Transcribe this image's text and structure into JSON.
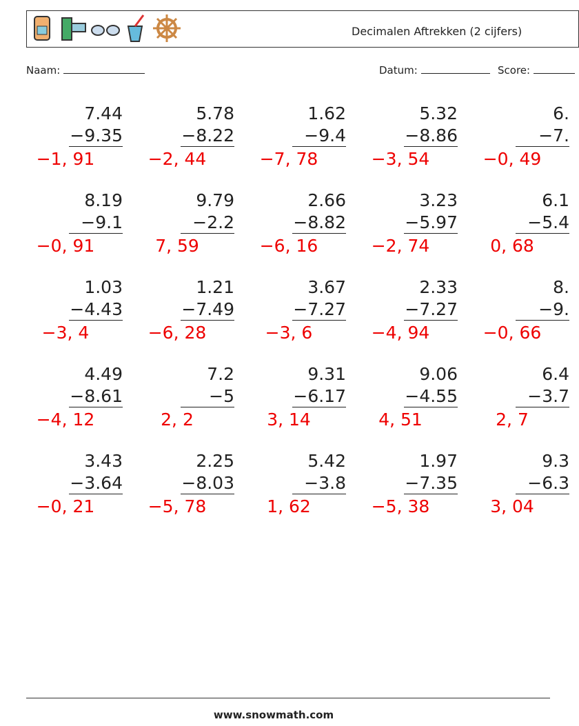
{
  "header": {
    "title": "Decimalen Aftrekken (2 cijfers)",
    "name_label": "Naam:",
    "date_label": "Datum:",
    "score_label": "Score:"
  },
  "problems": [
    [
      {
        "top": "7.44",
        "bottom": "−9.35",
        "answer": "−1, 91"
      },
      {
        "top": "5.78",
        "bottom": "−8.22",
        "answer": "−2, 44"
      },
      {
        "top": "1.62",
        "bottom": "−9.4",
        "answer": "−7, 78"
      },
      {
        "top": "5.32",
        "bottom": "−8.86",
        "answer": "−3, 54"
      },
      {
        "top": "6.",
        "bottom": "−7.",
        "answer": "−0, 49"
      }
    ],
    [
      {
        "top": "8.19",
        "bottom": "−9.1",
        "answer": "−0, 91"
      },
      {
        "top": "9.79",
        "bottom": "−2.2",
        "answer": "7, 59"
      },
      {
        "top": "2.66",
        "bottom": "−8.82",
        "answer": "−6, 16"
      },
      {
        "top": "3.23",
        "bottom": "−5.97",
        "answer": "−2, 74"
      },
      {
        "top": "6.1",
        "bottom": "−5.4",
        "answer": "0, 68"
      }
    ],
    [
      {
        "top": "1.03",
        "bottom": "−4.43",
        "answer": "−3, 4"
      },
      {
        "top": "1.21",
        "bottom": "−7.49",
        "answer": "−6, 28"
      },
      {
        "top": "3.67",
        "bottom": "−7.27",
        "answer": "−3, 6"
      },
      {
        "top": "2.33",
        "bottom": "−7.27",
        "answer": "−4, 94"
      },
      {
        "top": "8.",
        "bottom": "−9.",
        "answer": "−0, 66"
      }
    ],
    [
      {
        "top": "4.49",
        "bottom": "−8.61",
        "answer": "−4, 12"
      },
      {
        "top": "7.2",
        "bottom": "−5",
        "answer": "2, 2"
      },
      {
        "top": "9.31",
        "bottom": "−6.17",
        "answer": "3, 14"
      },
      {
        "top": "9.06",
        "bottom": "−4.55",
        "answer": "4, 51"
      },
      {
        "top": "6.4",
        "bottom": "−3.7",
        "answer": "2, 7"
      }
    ],
    [
      {
        "top": "3.43",
        "bottom": "−3.64",
        "answer": "−0, 21"
      },
      {
        "top": "2.25",
        "bottom": "−8.03",
        "answer": "−5, 78"
      },
      {
        "top": "5.42",
        "bottom": "−3.8",
        "answer": "1, 62"
      },
      {
        "top": "1.97",
        "bottom": "−7.35",
        "answer": "−5, 38"
      },
      {
        "top": "9.3",
        "bottom": "−6.3",
        "answer": "3, 04"
      }
    ]
  ],
  "footer": {
    "url": "www.snowmath.com"
  }
}
